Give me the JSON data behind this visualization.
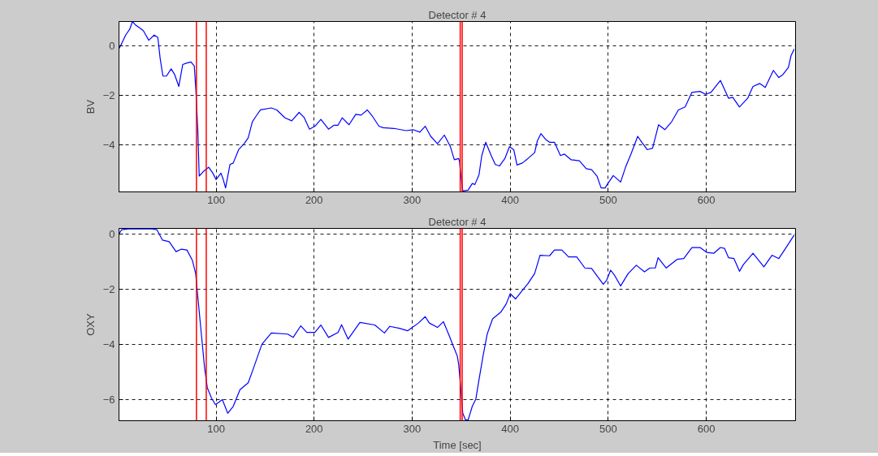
{
  "chart_data": [
    {
      "type": "line",
      "title": "Detector # 4",
      "ylabel": "BV",
      "xlim": [
        1,
        691
      ],
      "xticks": [
        100,
        200,
        300,
        400,
        500,
        600
      ],
      "ylim": [
        -5.9,
        1
      ],
      "yticks": [
        -4,
        -2,
        0
      ],
      "grid": true,
      "series": [
        {
          "color": "#0000ff",
          "x": [
            1,
            3.6,
            7.8,
            12,
            14.7,
            17.5,
            21.7,
            25.8,
            31.4,
            36.9,
            40.6,
            43,
            45.8,
            49.4,
            54.2,
            57.8,
            62,
            66,
            70.3,
            74.4,
            77.8,
            79.4,
            81.4,
            82.8,
            86.9,
            92.5,
            96.7,
            100,
            105,
            107.2,
            109.7,
            114.2,
            117.5,
            123,
            128.6,
            132.8,
            137,
            141,
            145.3,
            156.4,
            161.9,
            170.3,
            177.2,
            184.7,
            189.7,
            195.3,
            200.8,
            206.9,
            214.7,
            220.3,
            224.4,
            228.6,
            235.6,
            242.5,
            248,
            254.2,
            259.2,
            266.1,
            270.3,
            281.4,
            293.9,
            300.8,
            307.8,
            313.3,
            318.9,
            325.8,
            332.8,
            339,
            343,
            347.4,
            348.3,
            349.4,
            351.6,
            357,
            361.3,
            364,
            368.2,
            371,
            375,
            380.6,
            384.8,
            389,
            394.5,
            399.2,
            403.6,
            406.9,
            412.4,
            418,
            424.9,
            427.7,
            431.3,
            436,
            440.1,
            445.1,
            451.2,
            455.3,
            462.2,
            470.5,
            477.5,
            483,
            488.5,
            492.7,
            496.8,
            499.6,
            505.1,
            512.6,
            517.6,
            523.1,
            530,
            534.2,
            539.7,
            545.2,
            551.3,
            557.7,
            564.6,
            571.5,
            578.4,
            585.3,
            593.6,
            599.2,
            604.7,
            614.4,
            622.7,
            626.9,
            633.8,
            642.1,
            647.6,
            654.6,
            660.1,
            668.4,
            673.9,
            678.1,
            683.7,
            686.4,
            689.6
          ],
          "values": [
            -0.1,
            0.1,
            0.45,
            0.69,
            1.0,
            0.87,
            0.75,
            0.63,
            0.24,
            0.45,
            0.36,
            -0.5,
            -1.21,
            -1.21,
            -0.92,
            -1.15,
            -1.63,
            -0.74,
            -0.68,
            -0.64,
            -0.8,
            -1.79,
            -3.42,
            -5.26,
            -5.08,
            -4.9,
            -5.14,
            -5.4,
            -5.14,
            -5.38,
            -5.74,
            -4.79,
            -4.73,
            -4.19,
            -3.95,
            -3.71,
            -3.06,
            -2.82,
            -2.58,
            -2.5,
            -2.58,
            -2.9,
            -3.02,
            -2.68,
            -2.88,
            -3.36,
            -3.24,
            -2.96,
            -3.36,
            -3.2,
            -3.2,
            -2.9,
            -3.18,
            -2.76,
            -2.79,
            -2.58,
            -2.82,
            -3.24,
            -3.3,
            -3.33,
            -3.42,
            -3.38,
            -3.48,
            -3.24,
            -3.65,
            -3.95,
            -3.6,
            -4.07,
            -4.6,
            -4.55,
            -4.67,
            -5.14,
            -5.86,
            -5.83,
            -5.56,
            -5.6,
            -5.2,
            -4.43,
            -3.89,
            -4.43,
            -4.79,
            -4.85,
            -4.55,
            -4.07,
            -4.19,
            -4.81,
            -4.73,
            -4.55,
            -4.31,
            -3.83,
            -3.54,
            -3.77,
            -3.89,
            -3.89,
            -4.43,
            -4.37,
            -4.6,
            -4.64,
            -4.96,
            -5,
            -5.26,
            -5.74,
            -5.74,
            -5.56,
            -5.24,
            -5.5,
            -4.9,
            -4.37,
            -3.65,
            -3.89,
            -4.19,
            -4.13,
            -3.18,
            -3.38,
            -3.06,
            -2.58,
            -2.46,
            -1.87,
            -1.83,
            -1.95,
            -1.87,
            -1.39,
            -2.11,
            -2.07,
            -2.46,
            -2.11,
            -1.63,
            -1.51,
            -1.67,
            -0.98,
            -1.27,
            -1.15,
            -0.86,
            -0.38,
            -0.12
          ]
        }
      ],
      "ref_lines": [
        {
          "axis": "x",
          "value": 80,
          "color": "#ff0000"
        },
        {
          "axis": "x",
          "value": 90,
          "color": "#ff0000"
        },
        {
          "axis": "x",
          "value": 349,
          "color": "#ff0000"
        },
        {
          "axis": "x",
          "value": 351,
          "color": "#ff0000"
        }
      ]
    },
    {
      "type": "line",
      "title": "Detector # 4",
      "ylabel": "OXY",
      "xlabel": "Time [sec]",
      "xlim": [
        1,
        691
      ],
      "xticks": [
        100,
        200,
        300,
        400,
        500,
        600
      ],
      "ylim": [
        -6.75,
        0.2
      ],
      "yticks": [
        -6,
        -4,
        -2,
        0
      ],
      "grid": true,
      "series": [
        {
          "color": "#0000ff",
          "x": [
            1,
            3.6,
            12,
            23,
            34.2,
            39.7,
            45.3,
            52.2,
            59.2,
            64.7,
            70.3,
            75.8,
            79.2,
            81.4,
            84.2,
            88.3,
            91.1,
            95.3,
            99.4,
            106.4,
            111.9,
            117.5,
            124.4,
            132.8,
            138.3,
            146.7,
            156.4,
            173,
            178.6,
            186.4,
            192.5,
            200.8,
            206.9,
            214.7,
            224.4,
            228,
            234.7,
            246.7,
            261.9,
            271.7,
            277.2,
            287,
            295.3,
            306.4,
            313.3,
            317.5,
            325.8,
            331.9,
            337.8,
            341.9,
            346,
            347.4,
            349.4,
            351.6,
            354.4,
            357.1,
            361.3,
            364.9,
            368.2,
            372.3,
            376.5,
            382,
            390.3,
            395.9,
            400,
            405.5,
            412.4,
            418,
            424.9,
            430.4,
            440.1,
            445.1,
            452.6,
            459.5,
            467.8,
            476.1,
            483,
            494.9,
            498.2,
            502.4,
            506.5,
            512.6,
            520.3,
            528.6,
            536.9,
            542.5,
            548,
            550.8,
            559.1,
            570.1,
            577,
            585.3,
            593.6,
            600.6,
            607.5,
            614.4,
            618.5,
            622.7,
            628.2,
            633.8,
            637.9,
            647.6,
            658.7,
            667,
            673.9,
            680.8,
            689.6
          ],
          "values": [
            0,
            0.15,
            0.19,
            0.18,
            0.19,
            0.15,
            -0.22,
            -0.28,
            -0.64,
            -0.55,
            -0.58,
            -0.95,
            -1.43,
            -2.28,
            -3.32,
            -4.84,
            -5.56,
            -5.93,
            -6.17,
            -5.99,
            -6.48,
            -6.23,
            -5.63,
            -5.38,
            -4.84,
            -3.99,
            -3.58,
            -3.62,
            -3.74,
            -3.32,
            -3.56,
            -3.56,
            -3.29,
            -3.74,
            -3.56,
            -3.28,
            -3.8,
            -3.2,
            -3.29,
            -3.58,
            -3.34,
            -3.41,
            -3.5,
            -3.22,
            -2.99,
            -3.22,
            -3.38,
            -3.17,
            -3.68,
            -4.05,
            -4.41,
            -4.71,
            -5.5,
            -6.48,
            -6.72,
            -6.72,
            -6.23,
            -5.97,
            -5.26,
            -4.41,
            -3.62,
            -3.07,
            -2.83,
            -2.53,
            -2.16,
            -2.35,
            -2.04,
            -1.8,
            -1.43,
            -0.77,
            -0.79,
            -0.58,
            -0.58,
            -0.83,
            -0.83,
            -1.23,
            -1.25,
            -1.82,
            -1.68,
            -1.31,
            -1.5,
            -1.88,
            -1.43,
            -1.13,
            -1.37,
            -1.23,
            -1.23,
            -0.86,
            -1.23,
            -0.92,
            -0.89,
            -0.49,
            -0.49,
            -0.67,
            -0.7,
            -0.49,
            -0.52,
            -0.86,
            -0.89,
            -1.35,
            -1.1,
            -0.7,
            -1.19,
            -0.77,
            -0.89,
            -0.52,
            -0.04
          ]
        }
      ],
      "ref_lines": [
        {
          "axis": "x",
          "value": 80,
          "color": "#ff0000"
        },
        {
          "axis": "x",
          "value": 90,
          "color": "#ff0000"
        },
        {
          "axis": "x",
          "value": 349,
          "color": "#ff0000"
        },
        {
          "axis": "x",
          "value": 351,
          "color": "#ff0000"
        }
      ]
    }
  ]
}
